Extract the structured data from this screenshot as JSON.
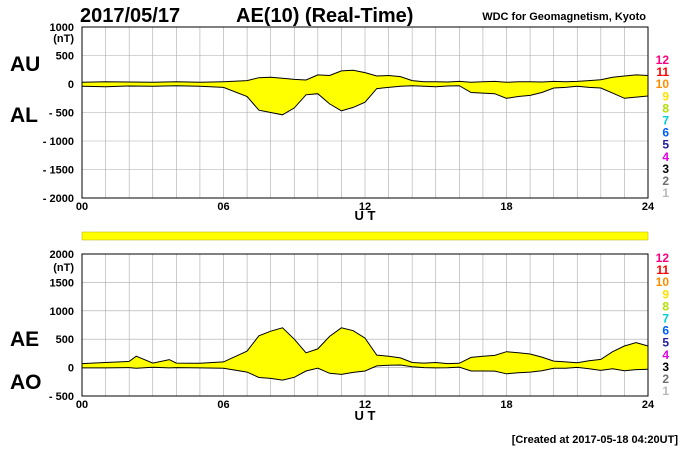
{
  "header": {
    "date": "2017/05/17",
    "title": "AE(10) (Real-Time)",
    "source": "WDC for Geomagnetism, Kyoto"
  },
  "footer": {
    "created": "[Created at 2017-05-18 04:20UT]"
  },
  "colors": {
    "fill": "#ffff00",
    "stroke": "#000000",
    "grid": "#aaaaaa"
  },
  "legend": {
    "labels": [
      "12",
      "11",
      "10",
      "9",
      "8",
      "7",
      "6",
      "5",
      "4",
      "3",
      "2",
      "1"
    ],
    "colors": [
      "#ff0080",
      "#ff0000",
      "#ff8c00",
      "#ffe000",
      "#b0e000",
      "#00d0d0",
      "#0060ff",
      "#2020a0",
      "#e000e0",
      "#000000",
      "#707070",
      "#b8b8b8"
    ]
  },
  "chart_data": [
    {
      "type": "area",
      "ylim": [
        -2000,
        1000
      ],
      "yticks": [
        "1000",
        "500",
        "0",
        "- 500",
        "- 1000",
        "- 1500",
        "- 2000"
      ],
      "yunit": "(nT)",
      "ylabel_top": "AU",
      "ylabel_bottom": "AL",
      "xlabel": "U T",
      "xlim": [
        0,
        24
      ],
      "xticks": [
        "00",
        "06",
        "12",
        "18",
        "24"
      ],
      "grid": true,
      "series": [
        {
          "name": "AU",
          "x": [
            0,
            1,
            2,
            3,
            4,
            5,
            6,
            7,
            7.5,
            8,
            8.5,
            9,
            9.5,
            10,
            10.5,
            11,
            11.5,
            12,
            12.5,
            13,
            13.5,
            14,
            14.5,
            15,
            15.5,
            16,
            16.5,
            17,
            17.5,
            18,
            18.5,
            19,
            19.5,
            20,
            20.5,
            21,
            21.5,
            22,
            22.5,
            23,
            23.5,
            24
          ],
          "values": [
            30,
            40,
            35,
            30,
            40,
            30,
            40,
            60,
            110,
            120,
            100,
            80,
            70,
            160,
            150,
            230,
            240,
            200,
            140,
            150,
            130,
            60,
            40,
            40,
            35,
            45,
            30,
            40,
            45,
            30,
            40,
            40,
            35,
            45,
            40,
            45,
            60,
            75,
            120,
            140,
            160,
            150
          ]
        },
        {
          "name": "AL",
          "x": [
            0,
            1,
            2,
            3,
            4,
            5,
            6,
            7,
            7.5,
            8,
            8.5,
            9,
            9.5,
            10,
            10.5,
            11,
            11.5,
            12,
            12.5,
            13,
            13.5,
            14,
            14.5,
            15,
            15.5,
            16,
            16.5,
            17,
            17.5,
            18,
            18.5,
            19,
            19.5,
            20,
            20.5,
            21,
            21.5,
            22,
            22.5,
            23,
            23.5,
            24
          ],
          "values": [
            -40,
            -50,
            -35,
            -40,
            -30,
            -40,
            -60,
            -220,
            -460,
            -500,
            -540,
            -420,
            -190,
            -170,
            -350,
            -470,
            -410,
            -320,
            -80,
            -60,
            -40,
            -30,
            -40,
            -50,
            -35,
            -30,
            -150,
            -160,
            -170,
            -250,
            -220,
            -200,
            -150,
            -70,
            -60,
            -40,
            -60,
            -70,
            -160,
            -250,
            -230,
            -210
          ]
        }
      ]
    },
    {
      "type": "area",
      "ylim": [
        -500,
        2000
      ],
      "yticks": [
        "2000",
        "1500",
        "1000",
        "500",
        "0",
        "- 500"
      ],
      "yunit": "(nT)",
      "ylabel_top": "AE",
      "ylabel_bottom": "AO",
      "xlabel": "U T",
      "xlim": [
        0,
        24
      ],
      "xticks": [
        "00",
        "06",
        "12",
        "18",
        "24"
      ],
      "grid": true,
      "series": [
        {
          "name": "AE",
          "x": [
            0,
            1,
            2,
            2.3,
            3,
            3.7,
            4,
            5,
            6,
            7,
            7.5,
            8,
            8.5,
            9,
            9.5,
            10,
            10.5,
            11,
            11.5,
            12,
            12.5,
            13,
            13.5,
            14,
            14.5,
            15,
            15.5,
            16,
            16.5,
            17,
            17.5,
            18,
            18.5,
            19,
            19.5,
            20,
            20.5,
            21,
            21.5,
            22,
            22.5,
            23,
            23.5,
            24
          ],
          "values": [
            70,
            90,
            110,
            200,
            80,
            140,
            80,
            75,
            100,
            290,
            560,
            640,
            700,
            500,
            260,
            330,
            550,
            700,
            650,
            520,
            220,
            200,
            170,
            90,
            80,
            90,
            70,
            75,
            180,
            200,
            215,
            280,
            260,
            240,
            185,
            115,
            100,
            85,
            120,
            145,
            280,
            380,
            440,
            380
          ]
        },
        {
          "name": "AO",
          "x": [
            0,
            1,
            2,
            2.3,
            3,
            3.7,
            4,
            5,
            6,
            7,
            7.5,
            8,
            8.5,
            9,
            9.5,
            10,
            10.5,
            11,
            11.5,
            12,
            12.5,
            13,
            13.5,
            14,
            14.5,
            15,
            15.5,
            16,
            16.5,
            17,
            17.5,
            18,
            18.5,
            19,
            19.5,
            20,
            20.5,
            21,
            21.5,
            22,
            22.5,
            23,
            23.5,
            24
          ],
          "values": [
            -5,
            -5,
            0,
            -10,
            5,
            -5,
            0,
            -5,
            -10,
            -80,
            -175,
            -190,
            -220,
            -170,
            -60,
            -10,
            -100,
            -120,
            -85,
            -60,
            30,
            40,
            45,
            15,
            0,
            -5,
            -3,
            8,
            -60,
            -60,
            -62,
            -110,
            -90,
            -80,
            -57,
            -12,
            -10,
            3,
            -20,
            -50,
            -20,
            -55,
            -35,
            -30
          ]
        }
      ]
    }
  ]
}
